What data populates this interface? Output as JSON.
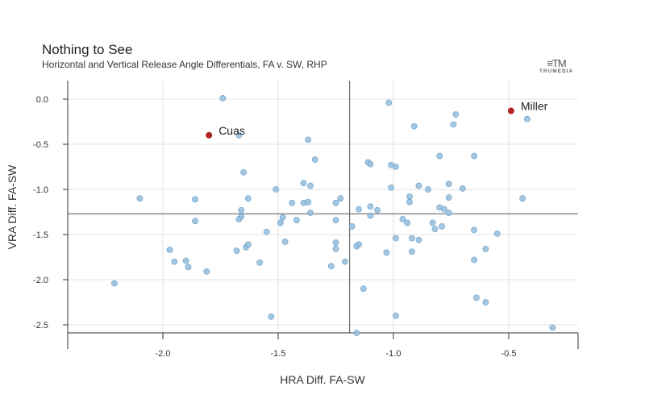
{
  "header": {
    "title": "Nothing to See",
    "subtitle": "Horizontal and Vertical Release Angle Differentials, FA v. SW, RHP",
    "logo_text": "TRUMEDIA"
  },
  "chart_data": {
    "type": "scatter",
    "xlabel": "HRA Diff. FA-SW",
    "ylabel": "VRA Diff. FA-SW",
    "xlim": [
      -2.4,
      -0.2
    ],
    "ylim": [
      -2.6,
      0.2
    ],
    "xticks": [
      -2.0,
      -1.5,
      -1.0,
      -0.5
    ],
    "yticks": [
      0.0,
      -0.5,
      -1.0,
      -1.5,
      -2.0,
      -2.5
    ],
    "xtick_labels": [
      "-2.0",
      "-1.5",
      "-1.0",
      "-0.5"
    ],
    "ytick_labels": [
      "0.0",
      "-0.5",
      "-1.0",
      "-1.5",
      "-2.0",
      "-2.5"
    ],
    "grid": true,
    "reference_lines": {
      "x": -1.19,
      "y": -1.27
    },
    "colors": {
      "point": "#93bddc",
      "point_stroke": "#6a9ec8",
      "highlight": "#b22222"
    },
    "highlights": [
      {
        "label": "Cuas",
        "x": -1.8,
        "y": -0.4
      },
      {
        "label": "Miller",
        "x": -0.49,
        "y": -0.13
      }
    ],
    "points": [
      [
        -1.74,
        0.01
      ],
      [
        -1.02,
        -0.04
      ],
      [
        -0.73,
        -0.17
      ],
      [
        -0.74,
        -0.28
      ],
      [
        -0.91,
        -0.3
      ],
      [
        -0.42,
        -0.22
      ],
      [
        -1.67,
        -0.4
      ],
      [
        -1.37,
        -0.45
      ],
      [
        -1.34,
        -0.67
      ],
      [
        -0.8,
        -0.63
      ],
      [
        -0.65,
        -0.63
      ],
      [
        -1.65,
        -0.81
      ],
      [
        -1.11,
        -0.7
      ],
      [
        -1.1,
        -0.72
      ],
      [
        -1.01,
        -0.73
      ],
      [
        -0.99,
        -0.75
      ],
      [
        -1.51,
        -1.0
      ],
      [
        -1.39,
        -0.93
      ],
      [
        -1.36,
        -0.96
      ],
      [
        -1.01,
        -0.98
      ],
      [
        -0.89,
        -0.96
      ],
      [
        -0.85,
        -1.0
      ],
      [
        -0.76,
        -0.94
      ],
      [
        -0.7,
        -0.99
      ],
      [
        -2.1,
        -1.1
      ],
      [
        -1.86,
        -1.11
      ],
      [
        -1.63,
        -1.1
      ],
      [
        -1.39,
        -1.15
      ],
      [
        -1.37,
        -1.14
      ],
      [
        -1.44,
        -1.15
      ],
      [
        -1.23,
        -1.1
      ],
      [
        -1.25,
        -1.15
      ],
      [
        -0.93,
        -1.08
      ],
      [
        -0.93,
        -1.14
      ],
      [
        -0.76,
        -1.09
      ],
      [
        -0.8,
        -1.2
      ],
      [
        -0.78,
        -1.22
      ],
      [
        -0.44,
        -1.1
      ],
      [
        -1.66,
        -1.23
      ],
      [
        -1.15,
        -1.22
      ],
      [
        -1.1,
        -1.19
      ],
      [
        -1.07,
        -1.23
      ],
      [
        -1.1,
        -1.29
      ],
      [
        -0.76,
        -1.26
      ],
      [
        -1.86,
        -1.35
      ],
      [
        -1.66,
        -1.3
      ],
      [
        -1.67,
        -1.33
      ],
      [
        -1.48,
        -1.31
      ],
      [
        -1.49,
        -1.37
      ],
      [
        -1.42,
        -1.34
      ],
      [
        -1.36,
        -1.26
      ],
      [
        -1.25,
        -1.34
      ],
      [
        -1.18,
        -1.41
      ],
      [
        -0.96,
        -1.33
      ],
      [
        -0.94,
        -1.37
      ],
      [
        -0.83,
        -1.37
      ],
      [
        -0.82,
        -1.44
      ],
      [
        -0.79,
        -1.41
      ],
      [
        -0.65,
        -1.45
      ],
      [
        -1.55,
        -1.47
      ],
      [
        -1.47,
        -1.58
      ],
      [
        -1.25,
        -1.59
      ],
      [
        -1.16,
        -1.63
      ],
      [
        -1.15,
        -1.61
      ],
      [
        -0.99,
        -1.54
      ],
      [
        -0.92,
        -1.54
      ],
      [
        -0.89,
        -1.56
      ],
      [
        -0.55,
        -1.49
      ],
      [
        -1.97,
        -1.67
      ],
      [
        -1.68,
        -1.68
      ],
      [
        -1.64,
        -1.64
      ],
      [
        -1.63,
        -1.61
      ],
      [
        -1.25,
        -1.66
      ],
      [
        -1.03,
        -1.7
      ],
      [
        -0.92,
        -1.69
      ],
      [
        -0.6,
        -1.66
      ],
      [
        -1.95,
        -1.8
      ],
      [
        -1.9,
        -1.79
      ],
      [
        -1.89,
        -1.86
      ],
      [
        -1.58,
        -1.81
      ],
      [
        -1.27,
        -1.85
      ],
      [
        -1.21,
        -1.8
      ],
      [
        -0.65,
        -1.78
      ],
      [
        -1.81,
        -1.91
      ],
      [
        -2.21,
        -2.04
      ],
      [
        -1.13,
        -2.1
      ],
      [
        -0.64,
        -2.2
      ],
      [
        -0.6,
        -2.25
      ],
      [
        -1.53,
        -2.41
      ],
      [
        -0.99,
        -2.4
      ],
      [
        -0.31,
        -2.53
      ],
      [
        -1.16,
        -2.59
      ]
    ]
  }
}
